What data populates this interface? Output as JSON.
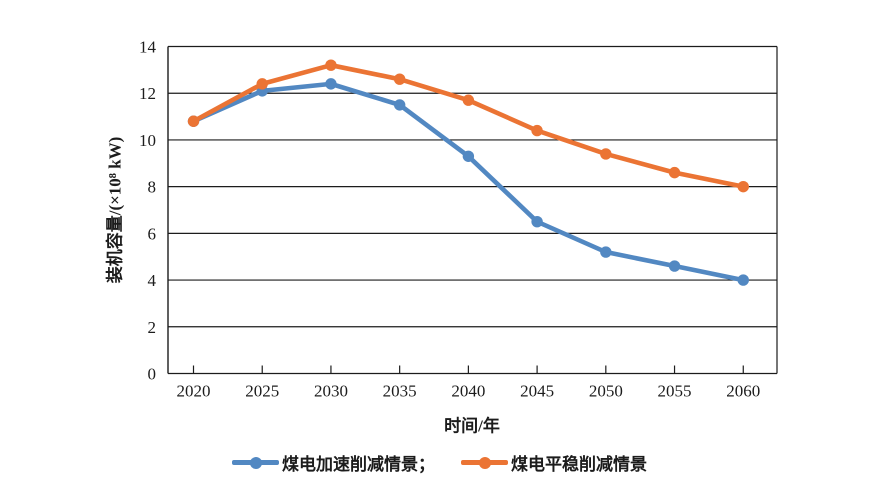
{
  "chart_data": {
    "type": "line",
    "title": "",
    "xlabel": "时间/年",
    "ylabel": "装机容量/(×10⁸ kW)",
    "categories": [
      "2020",
      "2025",
      "2030",
      "2035",
      "2040",
      "2045",
      "2050",
      "2055",
      "2060"
    ],
    "series": [
      {
        "id": "accelerated",
        "label": "煤电加速削减情景；",
        "color": "#5288C2",
        "values": [
          10.8,
          12.1,
          12.4,
          11.5,
          9.3,
          6.5,
          5.2,
          4.6,
          4.0
        ]
      },
      {
        "id": "steady",
        "label": "煤电平稳削减情景",
        "color": "#EB7434",
        "values": [
          10.8,
          12.4,
          13.2,
          12.6,
          11.7,
          10.4,
          9.4,
          8.6,
          8.0
        ]
      }
    ],
    "ylim": [
      0,
      14
    ],
    "yticks": [
      0,
      2,
      4,
      6,
      8,
      10,
      12,
      14
    ],
    "grid": "horizontal",
    "legend_position": "bottom",
    "axis_color": "#1c1c1c"
  }
}
